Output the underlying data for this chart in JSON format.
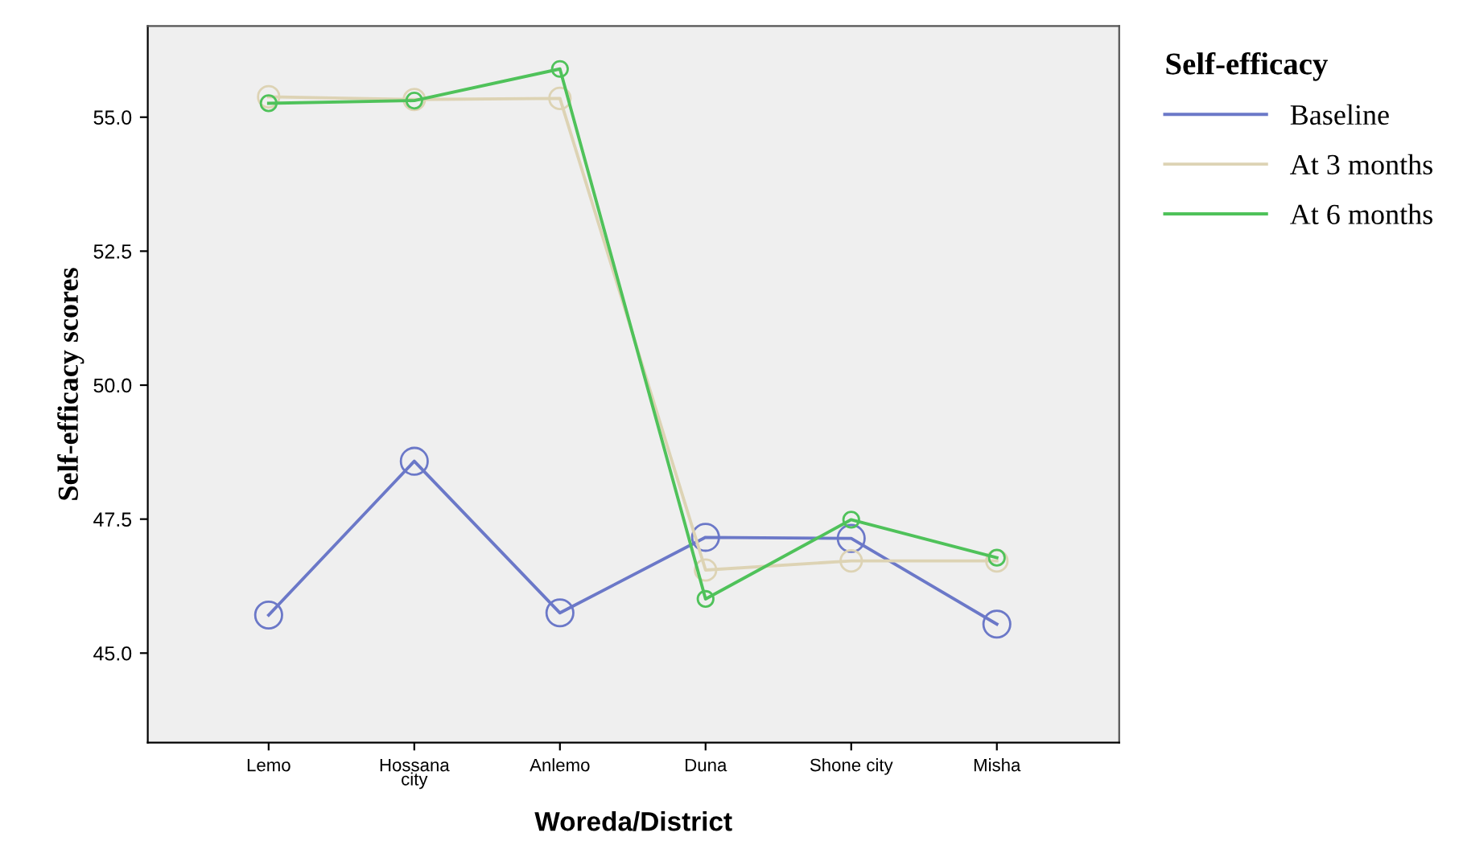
{
  "chart_data": {
    "type": "line",
    "xlabel": "Woreda/District",
    "ylabel": "Self-efficacy scores",
    "legend_title": "Self-efficacy",
    "categories": [
      "Lemo",
      "Hossana\ncity",
      "Anlemo",
      "Duna",
      "Shone city",
      "Misha"
    ],
    "series": [
      {
        "name": "Baseline",
        "color": "#6b78c8",
        "values": [
          45.71,
          48.58,
          45.75,
          47.16,
          47.14,
          45.54
        ]
      },
      {
        "name": "At 3 months",
        "color": "#ddd3b4",
        "values": [
          55.38,
          55.33,
          55.35,
          46.55,
          46.72,
          46.72
        ]
      },
      {
        "name": "At 6 months",
        "color": "#4fc25a",
        "values": [
          55.26,
          55.31,
          55.9,
          46.01,
          47.49,
          46.78
        ]
      }
    ],
    "ylim": [
      43.33,
      56.7
    ],
    "yticks": [
      {
        "value": 45,
        "label": "45.0"
      },
      {
        "value": 47.5,
        "label": "47.5"
      },
      {
        "value": 50,
        "label": "50.0"
      },
      {
        "value": 52.5,
        "label": "52.5"
      },
      {
        "value": 55,
        "label": "55.0"
      }
    ],
    "marker": "circle",
    "line_style": "solid",
    "grid": false,
    "legend": "right"
  }
}
